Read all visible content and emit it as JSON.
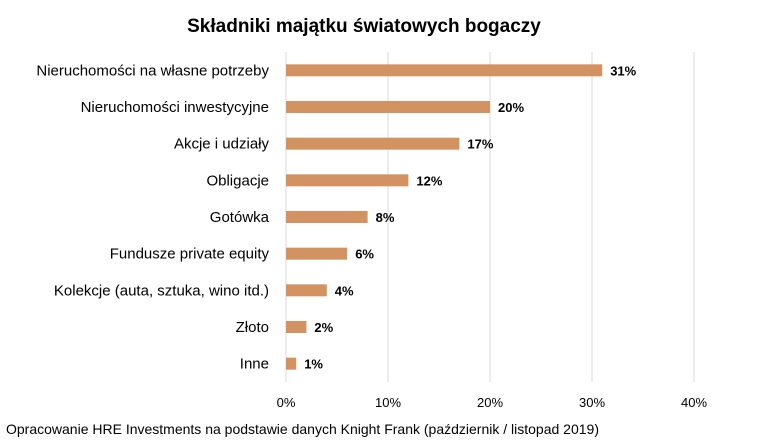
{
  "chart_data": {
    "type": "bar",
    "orientation": "horizontal",
    "title": "Składniki majątku światowych bogaczy",
    "categories": [
      "Nieruchomości na własne potrzeby",
      "Nieruchomości inwestycyjne",
      "Akcje i udziały",
      "Obligacje",
      "Gotówka",
      "Fundusze private equity",
      "Kolekcje (auta, sztuka, wino itd.)",
      "Złoto",
      "Inne"
    ],
    "values": [
      31,
      20,
      17,
      12,
      8,
      6,
      4,
      2,
      1
    ],
    "value_labels": [
      "31%",
      "20%",
      "17%",
      "12%",
      "8%",
      "6%",
      "4%",
      "2%",
      "1%"
    ],
    "xlim": [
      0,
      40
    ],
    "x_ticks": [
      0,
      10,
      20,
      30,
      40
    ],
    "x_tick_labels": [
      "0%",
      "10%",
      "20%",
      "30%",
      "40%"
    ],
    "grid": "vertical",
    "legend": "none",
    "bar_color": "#D39262",
    "grid_color": "#D9D9D9"
  },
  "source_note": "Opracowanie HRE Investments na podstawie danych Knight Frank (październik / listopad 2019)"
}
